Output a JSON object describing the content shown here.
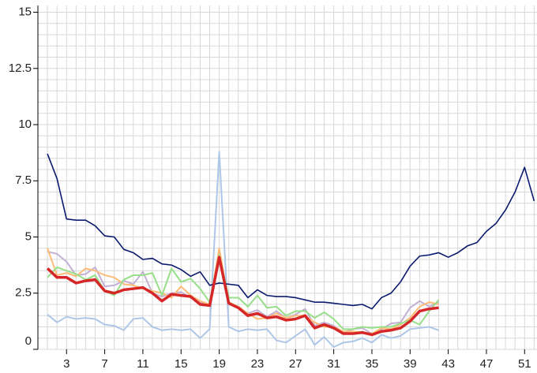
{
  "chart_data": {
    "type": "line",
    "x": [
      1,
      2,
      3,
      4,
      5,
      6,
      7,
      8,
      9,
      10,
      11,
      12,
      13,
      14,
      15,
      16,
      17,
      18,
      19,
      20,
      21,
      22,
      23,
      24,
      25,
      26,
      27,
      28,
      29,
      30,
      31,
      32,
      33,
      34,
      35,
      36,
      37,
      38,
      39,
      40,
      41,
      42,
      43,
      44,
      45,
      46,
      47,
      48,
      49,
      50,
      51,
      52
    ],
    "series": [
      {
        "color": "#aec7e8",
        "width": 2,
        "values": [
          1.55,
          1.2,
          1.45,
          1.35,
          1.4,
          1.35,
          1.1,
          1.05,
          0.85,
          1.35,
          1.4,
          1.0,
          0.85,
          0.9,
          0.85,
          0.9,
          0.5,
          0.9,
          8.8,
          1.0,
          0.8,
          0.9,
          0.85,
          0.9,
          0.4,
          0.3,
          0.6,
          0.9,
          0.2,
          0.55,
          0.1,
          0.3,
          0.35,
          0.5,
          0.3,
          0.65,
          0.5,
          0.6,
          0.9,
          0.95,
          1.0,
          0.85,
          null,
          null,
          null,
          null,
          null,
          null,
          null,
          null,
          null,
          null
        ]
      },
      {
        "color": "#c5b0d5",
        "width": 2,
        "values": [
          4.35,
          4.25,
          3.9,
          3.3,
          3.35,
          3.65,
          2.8,
          2.85,
          3.05,
          2.9,
          3.45,
          2.5,
          2.35,
          2.5,
          2.55,
          2.3,
          2.1,
          2.0,
          4.35,
          2.0,
          1.9,
          1.6,
          1.75,
          1.45,
          1.7,
          1.4,
          1.55,
          1.8,
          1.05,
          1.2,
          1.05,
          0.75,
          0.9,
          0.95,
          0.7,
          0.9,
          1.15,
          1.2,
          1.85,
          2.15,
          1.9,
          2.1,
          null,
          null,
          null,
          null,
          null,
          null,
          null,
          null,
          null,
          null
        ]
      },
      {
        "color": "#ffbb78",
        "width": 2,
        "values": [
          4.5,
          3.3,
          3.4,
          3.25,
          3.6,
          3.5,
          3.3,
          3.2,
          2.9,
          2.85,
          2.7,
          2.6,
          2.5,
          2.3,
          2.8,
          2.4,
          2.15,
          2.0,
          4.5,
          2.1,
          1.9,
          1.6,
          1.35,
          1.4,
          1.6,
          1.4,
          1.5,
          1.5,
          1.2,
          1.0,
          1.0,
          0.8,
          0.8,
          0.75,
          0.7,
          0.95,
          0.9,
          1.1,
          1.4,
          1.9,
          2.1,
          2.0,
          null,
          null,
          null,
          null,
          null,
          null,
          null,
          null,
          null,
          null
        ]
      },
      {
        "color": "#98df8a",
        "width": 2,
        "values": [
          3.2,
          3.65,
          3.5,
          3.35,
          3.1,
          3.3,
          2.6,
          2.4,
          3.1,
          3.3,
          3.3,
          3.4,
          2.4,
          3.6,
          3.0,
          3.15,
          2.7,
          2.1,
          4.2,
          2.3,
          2.3,
          1.9,
          2.4,
          1.85,
          1.9,
          1.5,
          1.7,
          1.7,
          1.4,
          1.65,
          1.35,
          0.9,
          0.9,
          1.0,
          0.95,
          1.0,
          1.0,
          1.15,
          1.3,
          1.1,
          1.7,
          2.2,
          null,
          null,
          null,
          null,
          null,
          null,
          null,
          null,
          null,
          null
        ]
      },
      {
        "color": "#0b1a6e",
        "width": 1.6,
        "values": [
          8.7,
          7.6,
          5.8,
          5.75,
          5.75,
          5.5,
          5.05,
          5.0,
          4.45,
          4.3,
          4.0,
          4.05,
          3.8,
          3.75,
          3.55,
          3.25,
          3.45,
          2.85,
          2.95,
          2.9,
          2.85,
          2.3,
          2.65,
          2.4,
          2.35,
          2.35,
          2.3,
          2.2,
          2.1,
          2.1,
          2.05,
          2.0,
          1.95,
          2.0,
          1.8,
          2.3,
          2.5,
          3.0,
          3.7,
          4.15,
          4.2,
          4.3,
          4.1,
          4.3,
          4.6,
          4.75,
          5.25,
          5.6,
          6.2,
          7.0,
          8.1,
          6.6
        ]
      },
      {
        "color": "#d62728",
        "width": 3.5,
        "values": [
          3.6,
          3.2,
          3.2,
          2.95,
          3.05,
          3.1,
          2.6,
          2.5,
          2.65,
          2.7,
          2.75,
          2.5,
          2.15,
          2.45,
          2.4,
          2.35,
          2.0,
          1.95,
          4.1,
          2.05,
          1.85,
          1.5,
          1.6,
          1.4,
          1.45,
          1.3,
          1.35,
          1.5,
          0.95,
          1.1,
          0.95,
          0.7,
          0.7,
          0.75,
          0.65,
          0.8,
          0.85,
          0.95,
          1.25,
          1.7,
          1.8,
          1.85,
          null,
          null,
          null,
          null,
          null,
          null,
          null,
          null,
          null,
          null
        ]
      }
    ],
    "xlim": [
      0,
      52.3
    ],
    "ylim": [
      0,
      15.3
    ],
    "xticks": [
      3,
      7,
      11,
      15,
      19,
      23,
      27,
      31,
      35,
      39,
      43,
      47,
      51
    ],
    "yticks": [
      0,
      2.5,
      5,
      7.5,
      10,
      12.5,
      15
    ],
    "grid": true,
    "minor_grid_step": {
      "x": 1,
      "y": 0.5
    }
  }
}
